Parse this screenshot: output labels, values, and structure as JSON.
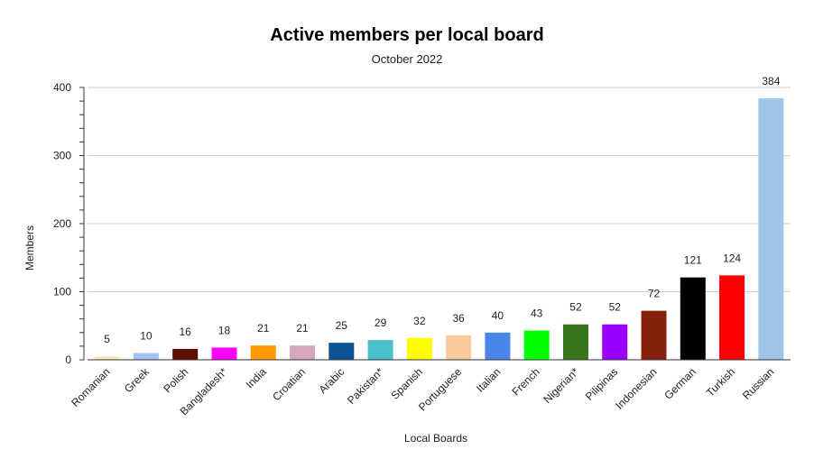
{
  "chart_data": {
    "type": "bar",
    "title": "Active members per local board",
    "subtitle": "October 2022",
    "xlabel": "Local Boards",
    "ylabel": "Members",
    "ylim": [
      0,
      400
    ],
    "yticks": [
      0,
      100,
      200,
      300,
      400
    ],
    "grid": true,
    "legend": "none",
    "categories": [
      "Romanian",
      "Greek",
      "Polish",
      "Bangladesh*",
      "India",
      "Croatian",
      "Arabic",
      "Pakistan*",
      "Spanish",
      "Portuguese",
      "Italian",
      "French",
      "Nigerian*",
      "Pilipinas",
      "Indonesian",
      "German",
      "Turkish",
      "Russian"
    ],
    "values": [
      5,
      10,
      16,
      18,
      21,
      21,
      25,
      29,
      32,
      36,
      40,
      43,
      52,
      52,
      72,
      121,
      124,
      384
    ],
    "colors": [
      "#fce8b2",
      "#a4c2f4",
      "#5b0f00",
      "#ff00ff",
      "#ff9900",
      "#d5a6bd",
      "#0b5394",
      "#4bbfc9",
      "#ffff00",
      "#f9cb9c",
      "#4a86e8",
      "#00ff00",
      "#38761d",
      "#9900ff",
      "#85200c",
      "#000000",
      "#ff0000",
      "#9fc5e8"
    ]
  }
}
